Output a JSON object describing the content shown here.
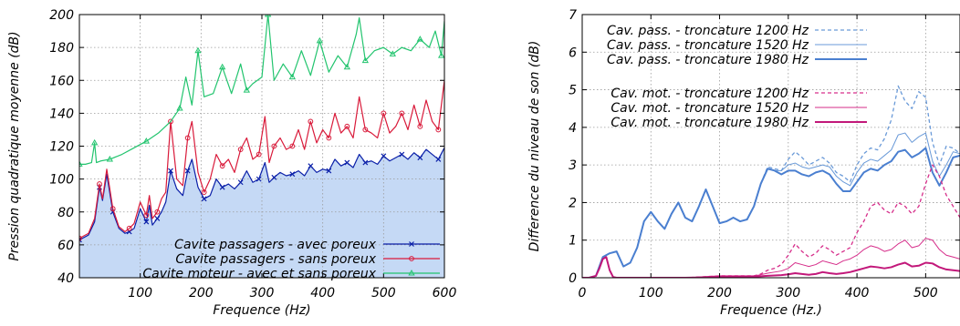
{
  "chart_data": [
    {
      "type": "line",
      "xlabel": "Frequence (Hz)",
      "ylabel": "Pression quadratique moyenne (dB)",
      "xlim": [
        0,
        600
      ],
      "ylim": [
        40,
        200
      ],
      "xticks": [
        100,
        200,
        300,
        400,
        500,
        600
      ],
      "yticks": [
        40,
        60,
        80,
        100,
        120,
        140,
        160,
        180,
        200
      ],
      "grid": true,
      "legend_position": "bottom-right",
      "fill_under_lowest_series": true,
      "fill_color": "#c5d9f5",
      "series": [
        {
          "name": "Cavite passagers - avec poreux",
          "color": "#0a1fa8",
          "marker": "x",
          "x": [
            0,
            15,
            25,
            33,
            38,
            45,
            55,
            65,
            75,
            82,
            90,
            100,
            110,
            115,
            120,
            128,
            135,
            142,
            150,
            160,
            170,
            178,
            185,
            195,
            205,
            215,
            225,
            235,
            245,
            255,
            265,
            275,
            285,
            295,
            305,
            312,
            320,
            330,
            340,
            350,
            360,
            370,
            380,
            390,
            400,
            410,
            420,
            430,
            440,
            450,
            460,
            470,
            480,
            490,
            500,
            510,
            520,
            530,
            540,
            550,
            560,
            570,
            580,
            590,
            600
          ],
          "y": [
            63,
            66,
            74,
            95,
            87,
            103,
            80,
            70,
            67,
            68,
            70,
            82,
            74,
            84,
            72,
            76,
            80,
            86,
            105,
            94,
            90,
            105,
            112,
            95,
            88,
            90,
            100,
            95,
            97,
            94,
            98,
            105,
            98,
            100,
            110,
            98,
            101,
            104,
            102,
            103,
            105,
            102,
            108,
            104,
            106,
            105,
            112,
            108,
            110,
            107,
            115,
            110,
            111,
            109,
            114,
            111,
            113,
            115,
            112,
            116,
            113,
            118,
            115,
            112,
            119
          ]
        },
        {
          "name": "Cavite passagers - sans poreux",
          "color": "#d91a3a",
          "marker": "circle",
          "x": [
            0,
            15,
            25,
            33,
            38,
            45,
            55,
            65,
            75,
            82,
            90,
            100,
            110,
            115,
            120,
            128,
            135,
            142,
            150,
            160,
            170,
            178,
            185,
            195,
            205,
            215,
            225,
            235,
            245,
            255,
            265,
            275,
            285,
            295,
            305,
            312,
            320,
            330,
            340,
            350,
            360,
            370,
            380,
            390,
            400,
            410,
            420,
            430,
            440,
            450,
            460,
            470,
            480,
            490,
            500,
            510,
            520,
            530,
            540,
            550,
            560,
            570,
            580,
            590,
            600
          ],
          "y": [
            64,
            67,
            76,
            97,
            88,
            106,
            82,
            71,
            68,
            70,
            73,
            86,
            78,
            90,
            76,
            80,
            88,
            92,
            135,
            100,
            96,
            125,
            135,
            104,
            92,
            100,
            115,
            108,
            112,
            104,
            118,
            125,
            112,
            115,
            138,
            110,
            120,
            125,
            118,
            120,
            130,
            118,
            135,
            122,
            130,
            125,
            140,
            128,
            132,
            125,
            150,
            130,
            128,
            125,
            140,
            128,
            132,
            140,
            130,
            145,
            132,
            148,
            135,
            130,
            160
          ]
        },
        {
          "name": "Cavite moteur - avec et sans poreux",
          "color": "#22c46e",
          "marker": "triangle",
          "x": [
            0,
            10,
            20,
            25,
            28,
            35,
            50,
            70,
            90,
            110,
            130,
            150,
            165,
            175,
            185,
            195,
            205,
            220,
            235,
            250,
            265,
            275,
            285,
            300,
            310,
            320,
            335,
            350,
            365,
            380,
            395,
            410,
            425,
            440,
            455,
            460,
            470,
            485,
            500,
            515,
            530,
            545,
            560,
            575,
            585,
            595,
            600
          ],
          "y": [
            109,
            109,
            110,
            122,
            110,
            111,
            112,
            115,
            119,
            123,
            128,
            135,
            143,
            162,
            145,
            178,
            150,
            152,
            168,
            152,
            170,
            154,
            158,
            162,
            200,
            160,
            170,
            162,
            178,
            163,
            184,
            165,
            175,
            168,
            188,
            198,
            172,
            178,
            180,
            176,
            180,
            178,
            185,
            180,
            190,
            175,
            196
          ]
        }
      ]
    },
    {
      "type": "line",
      "xlabel": "Frequence (Hz.)",
      "ylabel": "Difference du niveau de son (dB)",
      "xlim": [
        0,
        550
      ],
      "ylim": [
        0,
        7
      ],
      "xticks": [
        0,
        100,
        200,
        300,
        400,
        500
      ],
      "yticks": [
        0,
        1,
        2,
        3,
        4,
        5,
        6,
        7
      ],
      "grid": true,
      "legend_position": "top-left",
      "series": [
        {
          "name": "Cav. pass. - troncature 1200 Hz",
          "color": "#6a9ad8",
          "style": "dashed",
          "width": 1.3,
          "x": [
            0,
            10,
            20,
            30,
            40,
            50,
            60,
            70,
            80,
            90,
            100,
            110,
            120,
            130,
            140,
            150,
            160,
            170,
            180,
            190,
            200,
            210,
            220,
            230,
            240,
            250,
            260,
            270,
            280,
            290,
            300,
            310,
            320,
            330,
            340,
            350,
            360,
            370,
            380,
            390,
            400,
            410,
            420,
            430,
            440,
            450,
            460,
            470,
            480,
            490,
            500,
            510,
            520,
            530,
            540,
            550
          ],
          "y": [
            0,
            0,
            0.05,
            0.55,
            0.65,
            0.7,
            0.3,
            0.4,
            0.8,
            1.5,
            1.75,
            1.5,
            1.3,
            1.7,
            2.0,
            1.6,
            1.5,
            1.9,
            2.35,
            1.9,
            1.45,
            1.5,
            1.6,
            1.5,
            1.55,
            1.9,
            2.5,
            2.95,
            2.9,
            2.85,
            3.15,
            3.35,
            3.2,
            3.0,
            3.1,
            3.2,
            3.05,
            2.8,
            2.7,
            2.55,
            3.0,
            3.3,
            3.45,
            3.4,
            3.7,
            4.2,
            5.1,
            4.7,
            4.5,
            4.95,
            4.8,
            3.6,
            3.0,
            3.5,
            3.45,
            3.3
          ]
        },
        {
          "name": "Cav. pass. - troncature 1520 Hz",
          "color": "#6a9ad8",
          "style": "solid",
          "width": 1.0,
          "x": [
            0,
            10,
            20,
            30,
            40,
            50,
            60,
            70,
            80,
            90,
            100,
            110,
            120,
            130,
            140,
            150,
            160,
            170,
            180,
            190,
            200,
            210,
            220,
            230,
            240,
            250,
            260,
            270,
            280,
            290,
            300,
            310,
            320,
            330,
            340,
            350,
            360,
            370,
            380,
            390,
            400,
            410,
            420,
            430,
            440,
            450,
            460,
            470,
            480,
            490,
            500,
            510,
            520,
            530,
            540,
            550
          ],
          "y": [
            0,
            0,
            0.05,
            0.55,
            0.65,
            0.7,
            0.3,
            0.4,
            0.8,
            1.5,
            1.75,
            1.5,
            1.3,
            1.7,
            2.0,
            1.6,
            1.5,
            1.9,
            2.35,
            1.9,
            1.45,
            1.5,
            1.6,
            1.5,
            1.55,
            1.9,
            2.5,
            2.9,
            2.85,
            2.85,
            3.0,
            3.05,
            2.95,
            2.9,
            2.95,
            3.0,
            2.95,
            2.7,
            2.55,
            2.45,
            2.8,
            3.05,
            3.15,
            3.1,
            3.25,
            3.4,
            3.8,
            3.85,
            3.6,
            3.75,
            3.85,
            3.1,
            2.7,
            3.0,
            3.35,
            3.3
          ]
        },
        {
          "name": "Cav. pass. - troncature 1980 Hz",
          "color": "#4a7fd0",
          "style": "solid",
          "width": 2.0,
          "x": [
            0,
            10,
            20,
            30,
            40,
            50,
            60,
            70,
            80,
            90,
            100,
            110,
            120,
            130,
            140,
            150,
            160,
            170,
            180,
            190,
            200,
            210,
            220,
            230,
            240,
            250,
            260,
            270,
            280,
            290,
            300,
            310,
            320,
            330,
            340,
            350,
            360,
            370,
            380,
            390,
            400,
            410,
            420,
            430,
            440,
            450,
            460,
            470,
            480,
            490,
            500,
            510,
            520,
            530,
            540,
            550
          ],
          "y": [
            0,
            0,
            0.05,
            0.55,
            0.65,
            0.7,
            0.3,
            0.4,
            0.8,
            1.5,
            1.75,
            1.5,
            1.3,
            1.7,
            2.0,
            1.6,
            1.5,
            1.9,
            2.35,
            1.9,
            1.45,
            1.5,
            1.6,
            1.5,
            1.55,
            1.9,
            2.5,
            2.9,
            2.85,
            2.75,
            2.85,
            2.85,
            2.75,
            2.7,
            2.8,
            2.85,
            2.75,
            2.5,
            2.3,
            2.3,
            2.55,
            2.8,
            2.9,
            2.85,
            3.0,
            3.1,
            3.35,
            3.4,
            3.2,
            3.3,
            3.45,
            2.8,
            2.45,
            2.8,
            3.2,
            3.25
          ]
        },
        {
          "name": "Cav. mot. - troncature 1200 Hz",
          "color": "#d62d8a",
          "style": "dashed",
          "width": 1.3,
          "x": [
            0,
            10,
            20,
            25,
            30,
            35,
            40,
            45,
            50,
            60,
            100,
            150,
            200,
            250,
            260,
            270,
            280,
            290,
            300,
            310,
            320,
            330,
            340,
            350,
            360,
            370,
            380,
            390,
            400,
            410,
            420,
            430,
            440,
            450,
            460,
            470,
            480,
            490,
            500,
            510,
            520,
            530,
            540,
            550
          ],
          "y": [
            0,
            0,
            0.05,
            0.25,
            0.5,
            0.55,
            0.2,
            0.02,
            0,
            0,
            0,
            0,
            0.05,
            0.05,
            0.1,
            0.2,
            0.25,
            0.35,
            0.6,
            0.9,
            0.7,
            0.55,
            0.65,
            0.85,
            0.75,
            0.6,
            0.7,
            0.8,
            1.2,
            1.5,
            1.9,
            2.0,
            1.8,
            1.7,
            2.0,
            1.9,
            1.7,
            1.9,
            2.5,
            3.0,
            2.7,
            2.2,
            1.9,
            1.6
          ]
        },
        {
          "name": "Cav. mot. - troncature 1520 Hz",
          "color": "#d62d8a",
          "style": "solid",
          "width": 1.0,
          "x": [
            0,
            10,
            20,
            25,
            30,
            35,
            40,
            45,
            50,
            60,
            100,
            150,
            200,
            250,
            260,
            270,
            280,
            290,
            300,
            310,
            320,
            330,
            340,
            350,
            360,
            370,
            380,
            390,
            400,
            410,
            420,
            430,
            440,
            450,
            460,
            470,
            480,
            490,
            500,
            510,
            520,
            530,
            540,
            550
          ],
          "y": [
            0,
            0,
            0.05,
            0.25,
            0.5,
            0.55,
            0.2,
            0.02,
            0,
            0,
            0,
            0,
            0.05,
            0.05,
            0.08,
            0.12,
            0.15,
            0.18,
            0.25,
            0.4,
            0.35,
            0.3,
            0.35,
            0.45,
            0.4,
            0.35,
            0.45,
            0.5,
            0.6,
            0.75,
            0.85,
            0.8,
            0.7,
            0.75,
            0.9,
            1.0,
            0.8,
            0.85,
            1.05,
            1.0,
            0.75,
            0.6,
            0.55,
            0.5
          ]
        },
        {
          "name": "Cav. mot. - troncature 1980 Hz",
          "color": "#c2187a",
          "style": "solid",
          "width": 2.0,
          "x": [
            0,
            10,
            20,
            25,
            30,
            35,
            40,
            45,
            50,
            60,
            100,
            150,
            200,
            250,
            260,
            270,
            280,
            290,
            300,
            310,
            320,
            330,
            340,
            350,
            360,
            370,
            380,
            390,
            400,
            410,
            420,
            430,
            440,
            450,
            460,
            470,
            480,
            490,
            500,
            510,
            520,
            530,
            540,
            550
          ],
          "y": [
            0,
            0,
            0.05,
            0.25,
            0.5,
            0.55,
            0.2,
            0.02,
            0,
            0,
            0,
            0,
            0.02,
            0.03,
            0.04,
            0.05,
            0.06,
            0.07,
            0.09,
            0.12,
            0.1,
            0.08,
            0.1,
            0.15,
            0.12,
            0.1,
            0.12,
            0.15,
            0.2,
            0.25,
            0.3,
            0.28,
            0.25,
            0.28,
            0.35,
            0.4,
            0.3,
            0.32,
            0.4,
            0.38,
            0.28,
            0.22,
            0.2,
            0.18
          ]
        }
      ]
    }
  ]
}
